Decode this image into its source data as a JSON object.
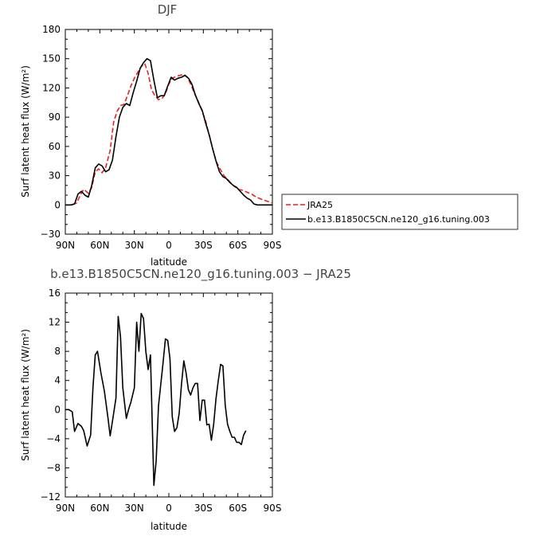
{
  "chart_data": [
    {
      "type": "line",
      "title": "DJF",
      "xlabel": "latitude",
      "ylabel": "Surf latent heat flux (W/m²)",
      "xlim": [
        90,
        -90
      ],
      "ylim": [
        -30,
        180
      ],
      "x_tick_values": [
        90,
        60,
        30,
        0,
        -30,
        -60,
        -90
      ],
      "x_tick_labels": [
        "90N",
        "60N",
        "30N",
        "0",
        "30S",
        "60S",
        "90S"
      ],
      "y_tick_values": [
        -30,
        0,
        30,
        60,
        90,
        120,
        150,
        180
      ],
      "y_tick_labels": [
        "−30",
        "0",
        "30",
        "60",
        "90",
        "120",
        "150",
        "180"
      ],
      "legend_position": "right",
      "series": [
        {
          "name": "JRA25",
          "color": "#e8201e",
          "dash": "dashed",
          "points": [
            [
              90,
              0
            ],
            [
              85,
              0
            ],
            [
              80,
              2
            ],
            [
              77,
              10
            ],
            [
              74,
              16
            ],
            [
              70,
              12
            ],
            [
              67,
              18
            ],
            [
              64,
              34
            ],
            [
              61,
              37
            ],
            [
              58,
              33
            ],
            [
              55,
              38
            ],
            [
              51,
              56
            ],
            [
              48,
              85
            ],
            [
              45,
              96
            ],
            [
              42,
              102
            ],
            [
              39,
              103
            ],
            [
              36,
              112
            ],
            [
              33,
              122
            ],
            [
              30,
              130
            ],
            [
              27,
              136
            ],
            [
              24,
              142
            ],
            [
              21,
              145
            ],
            [
              18,
              135
            ],
            [
              15,
              118
            ],
            [
              12,
              112
            ],
            [
              9,
              108
            ],
            [
              6,
              109
            ],
            [
              3,
              114
            ],
            [
              0,
              124
            ],
            [
              -3,
              130
            ],
            [
              -7,
              132
            ],
            [
              -10,
              133
            ],
            [
              -13,
              134
            ],
            [
              -16,
              131
            ],
            [
              -19,
              124
            ],
            [
              -22,
              115
            ],
            [
              -26,
              105
            ],
            [
              -29,
              96
            ],
            [
              -32,
              86
            ],
            [
              -35,
              72
            ],
            [
              -38,
              58
            ],
            [
              -41,
              45
            ],
            [
              -44,
              38
            ],
            [
              -48,
              30
            ],
            [
              -52,
              25
            ],
            [
              -56,
              20
            ],
            [
              -60,
              16
            ],
            [
              -64,
              15
            ],
            [
              -68,
              13
            ],
            [
              -72,
              11
            ],
            [
              -76,
              8
            ],
            [
              -80,
              6
            ],
            [
              -85,
              4
            ],
            [
              -90,
              2
            ]
          ]
        },
        {
          "name": "b.e13.B1850C5CN.ne120_g16.tuning.003",
          "color": "#000000",
          "dash": "solid",
          "points": [
            [
              90,
              0
            ],
            [
              85,
              0
            ],
            [
              82,
              1
            ],
            [
              79,
              11
            ],
            [
              76,
              14
            ],
            [
              73,
              10
            ],
            [
              70,
              8
            ],
            [
              67,
              20
            ],
            [
              64,
              38
            ],
            [
              61,
              42
            ],
            [
              58,
              40
            ],
            [
              55,
              34
            ],
            [
              52,
              36
            ],
            [
              49,
              46
            ],
            [
              46,
              70
            ],
            [
              43,
              90
            ],
            [
              40,
              100
            ],
            [
              37,
              104
            ],
            [
              34,
              102
            ],
            [
              31,
              115
            ],
            [
              28,
              127
            ],
            [
              25,
              140
            ],
            [
              22,
              146
            ],
            [
              19,
              150
            ],
            [
              16,
              148
            ],
            [
              13,
              128
            ],
            [
              10,
              110
            ],
            [
              7,
              112
            ],
            [
              4,
              112
            ],
            [
              1,
              122
            ],
            [
              -2,
              131
            ],
            [
              -5,
              128
            ],
            [
              -8,
              130
            ],
            [
              -11,
              131
            ],
            [
              -14,
              133
            ],
            [
              -17,
              130
            ],
            [
              -20,
              124
            ],
            [
              -23,
              113
            ],
            [
              -26,
              104
            ],
            [
              -29,
              97
            ],
            [
              -32,
              84
            ],
            [
              -35,
              72
            ],
            [
              -38,
              58
            ],
            [
              -41,
              45
            ],
            [
              -44,
              34
            ],
            [
              -47,
              29
            ],
            [
              -50,
              27
            ],
            [
              -53,
              23
            ],
            [
              -56,
              20
            ],
            [
              -59,
              18
            ],
            [
              -62,
              14
            ],
            [
              -65,
              10
            ],
            [
              -68,
              7
            ],
            [
              -71,
              5
            ],
            [
              -74,
              1
            ],
            [
              -77,
              0
            ],
            [
              -81,
              0
            ],
            [
              -85,
              0
            ],
            [
              -90,
              0
            ]
          ]
        }
      ]
    },
    {
      "type": "line",
      "title": "b.e13.B1850C5CN.ne120_g16.tuning.003 − JRA25",
      "xlabel": "latitude",
      "ylabel": "Surf latent heat flux (W/m²)",
      "xlim": [
        90,
        -90
      ],
      "ylim": [
        -12,
        16
      ],
      "x_tick_values": [
        90,
        60,
        30,
        0,
        -30,
        -60,
        -90
      ],
      "x_tick_labels": [
        "90N",
        "60N",
        "30N",
        "0",
        "30S",
        "60S",
        "90S"
      ],
      "y_tick_values": [
        -12,
        -8,
        -4,
        0,
        4,
        8,
        12,
        16
      ],
      "y_tick_labels": [
        "−12",
        "−8",
        "−4",
        "0",
        "4",
        "8",
        "12",
        "16"
      ],
      "series": [
        {
          "color": "#000000",
          "dash": "solid",
          "points": [
            [
              90,
              0
            ],
            [
              87,
              0
            ],
            [
              84,
              -0.3
            ],
            [
              82,
              -3
            ],
            [
              79,
              -1.9
            ],
            [
              76,
              -2.3
            ],
            [
              74,
              -2.9
            ],
            [
              71,
              -5
            ],
            [
              68,
              -3.5
            ],
            [
              66,
              3
            ],
            [
              64,
              7.5
            ],
            [
              62,
              8
            ],
            [
              59,
              5
            ],
            [
              56,
              2.5
            ],
            [
              53,
              -1
            ],
            [
              51,
              -3.6
            ],
            [
              49,
              -1.6
            ],
            [
              46,
              1.6
            ],
            [
              44,
              12.8
            ],
            [
              42,
              10
            ],
            [
              40,
              3
            ],
            [
              37,
              -1.2
            ],
            [
              35,
              0
            ],
            [
              33,
              1
            ],
            [
              30,
              3
            ],
            [
              28,
              12
            ],
            [
              26,
              8
            ],
            [
              24,
              13.2
            ],
            [
              22,
              12.5
            ],
            [
              20,
              8
            ],
            [
              18,
              5.5
            ],
            [
              16,
              7.5
            ],
            [
              13,
              -10.4
            ],
            [
              11,
              -7
            ],
            [
              9,
              0.5
            ],
            [
              7,
              3.5
            ],
            [
              5,
              6.5
            ],
            [
              3,
              9.7
            ],
            [
              1,
              9.5
            ],
            [
              -1,
              7
            ],
            [
              -3,
              -1
            ],
            [
              -5,
              -3
            ],
            [
              -7,
              -2.5
            ],
            [
              -9,
              -0.5
            ],
            [
              -11,
              3.5
            ],
            [
              -13,
              6.7
            ],
            [
              -15,
              5
            ],
            [
              -17,
              2.7
            ],
            [
              -19,
              2
            ],
            [
              -21,
              3
            ],
            [
              -23,
              3.6
            ],
            [
              -25,
              3.6
            ],
            [
              -27,
              -1.5
            ],
            [
              -29,
              1.3
            ],
            [
              -31,
              1.3
            ],
            [
              -33,
              -2.1
            ],
            [
              -35,
              -2
            ],
            [
              -37,
              -4.2
            ],
            [
              -39,
              -2
            ],
            [
              -41,
              1.5
            ],
            [
              -43,
              4
            ],
            [
              -45,
              6.2
            ],
            [
              -47,
              6
            ],
            [
              -49,
              0.6
            ],
            [
              -51,
              -2
            ],
            [
              -53,
              -3
            ],
            [
              -55,
              -3.8
            ],
            [
              -57,
              -3.8
            ],
            [
              -59,
              -4.5
            ],
            [
              -61,
              -4.5
            ],
            [
              -63,
              -4.8
            ],
            [
              -65,
              -3.5
            ],
            [
              -67,
              -2.9
            ]
          ]
        }
      ]
    }
  ]
}
